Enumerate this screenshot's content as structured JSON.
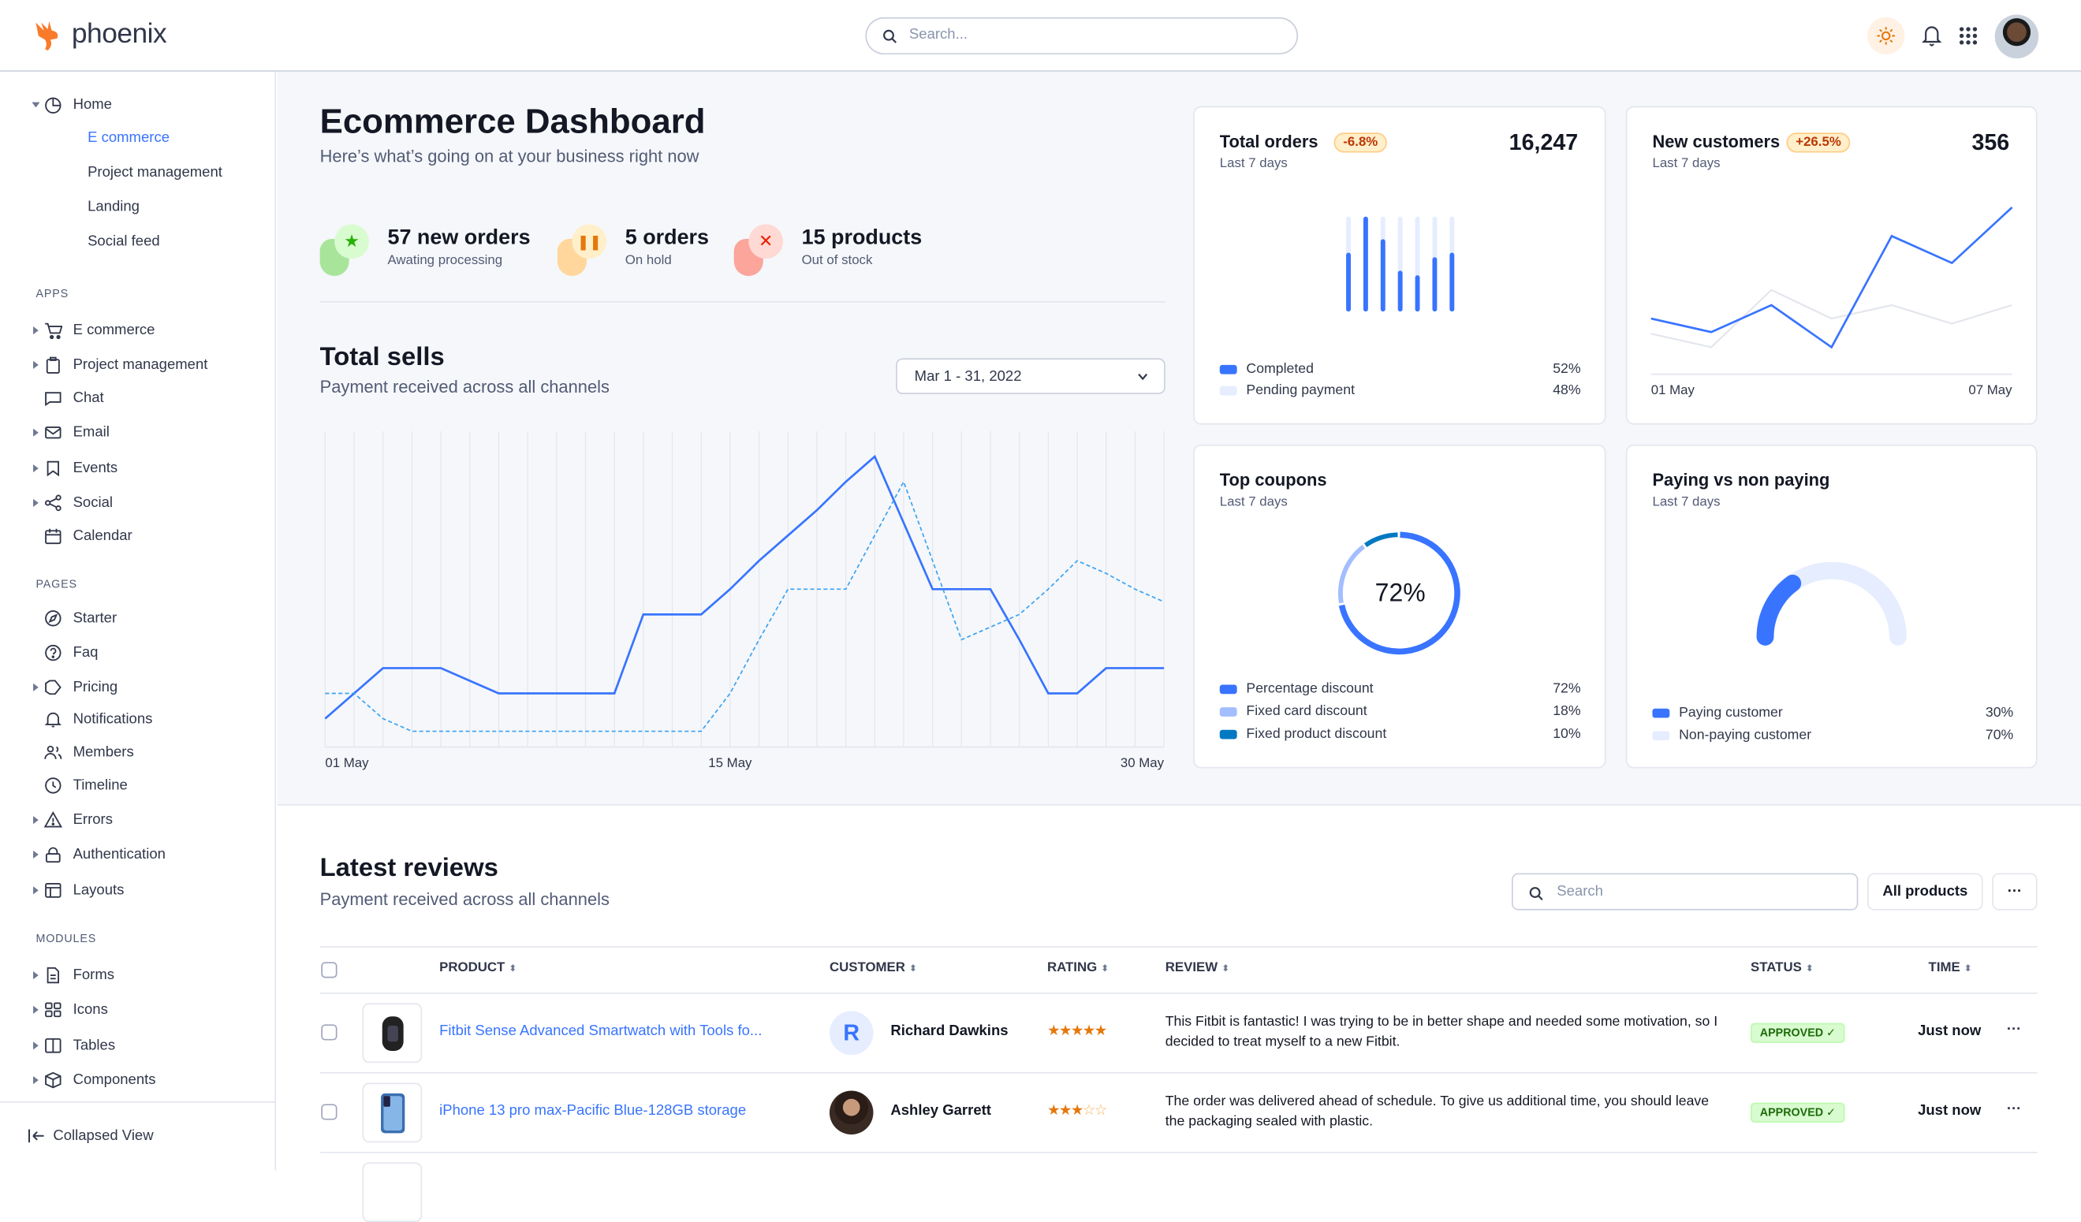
{
  "app": {
    "name": "phoenix"
  },
  "topbar": {
    "search_placeholder": "Search...",
    "icons": [
      "sun-icon",
      "bell-icon",
      "apps-grid-icon",
      "user-avatar"
    ]
  },
  "sidebar": {
    "home": {
      "label": "Home",
      "icon": "pie-chart-icon",
      "children": [
        {
          "label": "E commerce",
          "active": true
        },
        {
          "label": "Project management"
        },
        {
          "label": "Landing"
        },
        {
          "label": "Social feed"
        }
      ]
    },
    "sections": [
      {
        "heading": "APPS",
        "items": [
          {
            "label": "E commerce",
            "icon": "cart",
            "expandable": true
          },
          {
            "label": "Project management",
            "icon": "clipboard",
            "expandable": true
          },
          {
            "label": "Chat",
            "icon": "chat",
            "expandable": false
          },
          {
            "label": "Email",
            "icon": "mail",
            "expandable": true
          },
          {
            "label": "Events",
            "icon": "bookmark",
            "expandable": true
          },
          {
            "label": "Social",
            "icon": "share",
            "expandable": true
          },
          {
            "label": "Calendar",
            "icon": "calendar",
            "expandable": false
          }
        ]
      },
      {
        "heading": "PAGES",
        "items": [
          {
            "label": "Starter",
            "icon": "compass",
            "expandable": false
          },
          {
            "label": "Faq",
            "icon": "help",
            "expandable": false
          },
          {
            "label": "Pricing",
            "icon": "tag",
            "expandable": true
          },
          {
            "label": "Notifications",
            "icon": "bell",
            "expandable": false
          },
          {
            "label": "Members",
            "icon": "users",
            "expandable": false
          },
          {
            "label": "Timeline",
            "icon": "clock",
            "expandable": false
          },
          {
            "label": "Errors",
            "icon": "alert",
            "expandable": true
          },
          {
            "label": "Authentication",
            "icon": "lock",
            "expandable": true
          },
          {
            "label": "Layouts",
            "icon": "layout",
            "expandable": true
          }
        ]
      },
      {
        "heading": "MODULES",
        "items": [
          {
            "label": "Forms",
            "icon": "file",
            "expandable": true
          },
          {
            "label": "Icons",
            "icon": "grid",
            "expandable": true
          },
          {
            "label": "Tables",
            "icon": "columns",
            "expandable": true
          },
          {
            "label": "Components",
            "icon": "package",
            "expandable": true
          }
        ]
      }
    ],
    "collapse_label": "Collapsed View"
  },
  "header": {
    "title": "Ecommerce Dashboard",
    "subtitle": "Here’s what’s going on at your business right now"
  },
  "stats": [
    {
      "value": "57 new orders",
      "label": "Awating processing",
      "icon": "star-icon",
      "color": "#25b003"
    },
    {
      "value": "5 orders",
      "label": "On hold",
      "icon": "pause-icon",
      "color": "#e5780b"
    },
    {
      "value": "15 products",
      "label": "Out of stock",
      "icon": "x-icon",
      "color": "#ec1f00"
    }
  ],
  "total_sells": {
    "title": "Total sells",
    "subtitle": "Payment received across all channels",
    "date_range": "Mar 1 - 31, 2022"
  },
  "cards": {
    "total_orders": {
      "title": "Total orders",
      "badge": "-6.8%",
      "period": "Last 7 days",
      "value": "16,247",
      "legend": [
        {
          "label": "Completed",
          "value": "52%",
          "color": "#3874ff"
        },
        {
          "label": "Pending payment",
          "value": "48%",
          "color": "#e5edff"
        }
      ]
    },
    "new_customers": {
      "title": "New customers",
      "badge": "+26.5%",
      "period": "Last 7 days",
      "value": "356"
    },
    "top_coupons": {
      "title": "Top coupons",
      "period": "Last 7 days",
      "center_label": "72%",
      "legend": [
        {
          "label": "Percentage discount",
          "value": "72%",
          "color": "#3874ff"
        },
        {
          "label": "Fixed card discount",
          "value": "18%",
          "color": "#a3beff"
        },
        {
          "label": "Fixed product discount",
          "value": "10%",
          "color": "#0079c2"
        }
      ]
    },
    "paying": {
      "title": "Paying vs non paying",
      "period": "Last 7 days",
      "legend": [
        {
          "label": "Paying customer",
          "value": "30%",
          "color": "#3874ff"
        },
        {
          "label": "Non-paying customer",
          "value": "70%",
          "color": "#e5edff"
        }
      ]
    }
  },
  "chart_data": [
    {
      "type": "line",
      "title": "Total sells",
      "x": [
        "01 May",
        "02 May",
        "03 May",
        "04 May",
        "05 May",
        "06 May",
        "07 May",
        "08 May",
        "09 May",
        "10 May",
        "11 May",
        "12 May",
        "13 May",
        "14 May",
        "15 May",
        "16 May",
        "17 May",
        "18 May",
        "19 May",
        "20 May",
        "21 May",
        "22 May",
        "23 May",
        "24 May",
        "25 May",
        "26 May",
        "27 May",
        "28 May",
        "29 May",
        "30 May"
      ],
      "xticks": [
        "01 May",
        "15 May",
        "30 May"
      ],
      "ylim": [
        0,
        100
      ],
      "grid": "vertical",
      "series": [
        {
          "style": "solid",
          "color": "#3874ff",
          "values": [
            9,
            17,
            25,
            25,
            25,
            21,
            17,
            17,
            17,
            17,
            17,
            42,
            42,
            42,
            50,
            59,
            67,
            75,
            84,
            92,
            71,
            50,
            50,
            50,
            34,
            17,
            17,
            25,
            25,
            25
          ]
        },
        {
          "style": "dashed",
          "color": "#3aa2f2",
          "values": [
            17,
            17,
            9,
            5,
            5,
            5,
            5,
            5,
            5,
            5,
            5,
            5,
            5,
            5,
            17,
            34,
            50,
            50,
            50,
            67,
            84,
            59,
            34,
            38,
            42,
            50,
            59,
            55,
            50,
            46
          ]
        }
      ]
    },
    {
      "type": "bar",
      "title": "Total orders",
      "categories": [
        "1",
        "2",
        "3",
        "4",
        "5",
        "6",
        "7"
      ],
      "stacked": true,
      "series": [
        {
          "name": "Completed",
          "values": [
            60,
            100,
            75,
            40,
            35,
            55,
            60
          ]
        },
        {
          "name": "Pending payment",
          "values": [
            40,
            0,
            25,
            60,
            65,
            45,
            40
          ]
        }
      ]
    },
    {
      "type": "line",
      "title": "New customers",
      "x": [
        "01 May",
        "02 May",
        "03 May",
        "04 May",
        "05 May",
        "06 May",
        "07 May"
      ],
      "xticks": [
        "01 May",
        "07 May"
      ],
      "series": [
        {
          "color": "#3874ff",
          "values": [
            33,
            25,
            41,
            16,
            82,
            66,
            99
          ]
        },
        {
          "color": "#e3e6ed",
          "values": [
            24,
            16,
            50,
            33,
            41,
            30,
            41
          ]
        }
      ]
    },
    {
      "type": "pie",
      "title": "Top coupons",
      "donut": true,
      "categories": [
        "Percentage discount",
        "Fixed card discount",
        "Fixed product discount"
      ],
      "values": [
        72,
        18,
        10
      ]
    },
    {
      "type": "pie",
      "title": "Paying vs non paying",
      "gauge": true,
      "categories": [
        "Paying customer",
        "Non-paying customer"
      ],
      "values": [
        30,
        70
      ]
    }
  ],
  "reviews": {
    "title": "Latest reviews",
    "subtitle": "Payment received across all channels",
    "search_placeholder": "Search",
    "filter_label": "All products",
    "more_label": "···",
    "columns": [
      "PRODUCT",
      "CUSTOMER",
      "RATING",
      "REVIEW",
      "STATUS",
      "TIME"
    ],
    "rows": [
      {
        "product": "Fitbit Sense Advanced Smartwatch with Tools fo...",
        "customer": "Richard Dawkins",
        "initial": "R",
        "rating": 5,
        "review": "This Fitbit is fantastic! I was trying to be in better shape and needed some motivation, so I decided to treat myself to a new Fitbit.",
        "status": "APPROVED ✓",
        "time": "Just now",
        "more": "···"
      },
      {
        "product": "iPhone 13 pro max-Pacific Blue-128GB storage",
        "customer": "Ashley Garrett",
        "initial": "",
        "rating": 3,
        "review": "The order was delivered ahead of schedule. To give us additional time, you should leave the packaging sealed with plastic.",
        "status": "APPROVED ✓",
        "time": "Just now",
        "more": "···"
      }
    ]
  },
  "colors": {
    "primary": "#3874ff",
    "text": "#141824",
    "muted": "#525b75",
    "background": "#f5f7fa"
  }
}
